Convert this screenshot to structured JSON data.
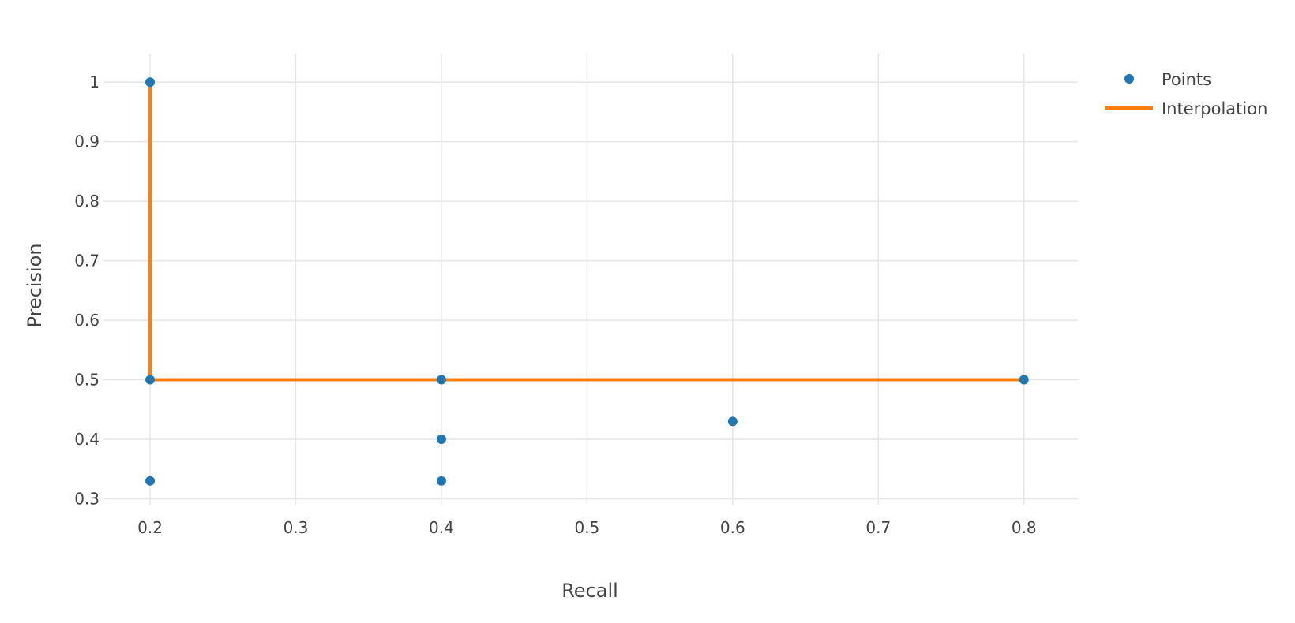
{
  "chart_data": {
    "type": "scatter",
    "xlabel": "Recall",
    "ylabel": "Precision",
    "xlim": [
      0.168,
      0.837
    ],
    "ylim": [
      0.29,
      1.048
    ],
    "grid": true,
    "xticks": [
      0.2,
      0.3,
      0.4,
      0.5,
      0.6,
      0.7,
      0.8
    ],
    "xtick_labels": [
      "0.2",
      "0.3",
      "0.4",
      "0.5",
      "0.6",
      "0.7",
      "0.8"
    ],
    "yticks": [
      0.3,
      0.4,
      0.5,
      0.6,
      0.7,
      0.8,
      0.9,
      1.0
    ],
    "ytick_labels": [
      "0.3",
      "0.4",
      "0.5",
      "0.6",
      "0.7",
      "0.8",
      "0.9",
      "1"
    ],
    "legend_position": "top-right",
    "series": [
      {
        "name": "Points",
        "mode": "markers",
        "color": "#1f77b4",
        "x": [
          0.2,
          0.2,
          0.2,
          0.4,
          0.4,
          0.4,
          0.6,
          0.8
        ],
        "y": [
          1.0,
          0.5,
          0.33,
          0.5,
          0.4,
          0.33,
          0.43,
          0.5
        ]
      },
      {
        "name": "Interpolation",
        "mode": "lines",
        "color": "#ff7f0e",
        "x": [
          0.2,
          0.2,
          0.8
        ],
        "y": [
          1.0,
          0.5,
          0.5
        ]
      }
    ]
  }
}
